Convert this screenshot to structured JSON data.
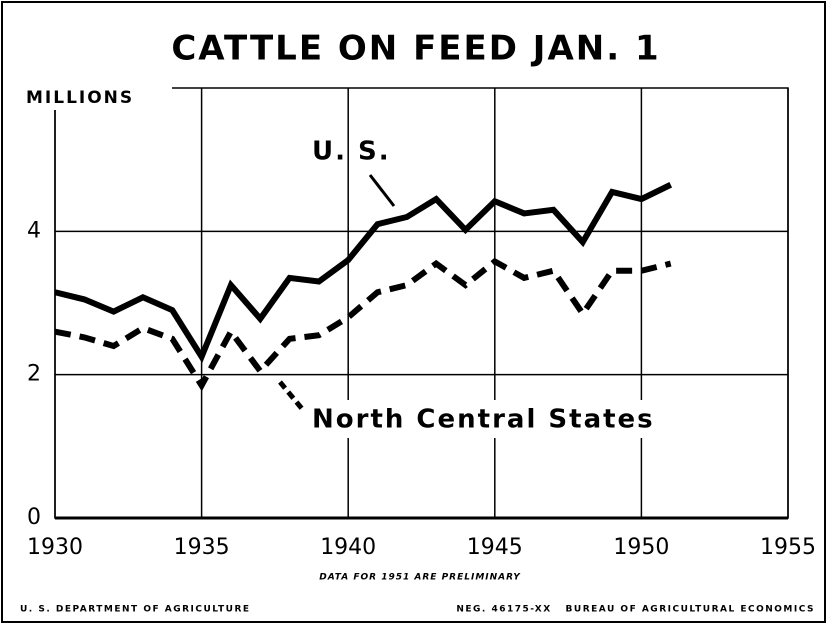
{
  "chart_data": {
    "type": "line",
    "title": "CATTLE ON FEED JAN. 1",
    "ylabel": "MILLIONS",
    "note": "DATA FOR 1951 ARE PRELIMINARY",
    "footer_left": "U. S. DEPARTMENT OF AGRICULTURE",
    "footer_right": "NEG. 46175-XX   BUREAU OF AGRICULTURAL ECONOMICS",
    "x": [
      1930,
      1931,
      1932,
      1933,
      1934,
      1935,
      1936,
      1937,
      1938,
      1939,
      1940,
      1941,
      1942,
      1943,
      1944,
      1945,
      1946,
      1947,
      1948,
      1949,
      1950,
      1951
    ],
    "series": [
      {
        "name": "U. S.",
        "color": "#000000",
        "dash": false,
        "values": [
          3.15,
          3.05,
          2.88,
          3.08,
          2.9,
          2.25,
          3.25,
          2.78,
          3.35,
          3.3,
          3.6,
          4.1,
          4.2,
          4.45,
          4.02,
          4.42,
          4.25,
          4.3,
          3.85,
          4.55,
          4.45,
          4.65
        ]
      },
      {
        "name": "North Central States",
        "color": "#000000",
        "dash": true,
        "values": [
          2.6,
          2.52,
          2.4,
          2.65,
          2.5,
          1.85,
          2.6,
          2.05,
          2.5,
          2.55,
          2.8,
          3.15,
          3.25,
          3.55,
          3.25,
          3.58,
          3.35,
          3.45,
          2.85,
          3.45,
          3.45,
          3.55
        ]
      }
    ],
    "xlim": [
      1930,
      1955
    ],
    "xticks": [
      1930,
      1935,
      1940,
      1945,
      1950,
      1955
    ],
    "ylim": [
      0,
      6
    ],
    "yticks": [
      0,
      2,
      4
    ],
    "grid": true
  }
}
